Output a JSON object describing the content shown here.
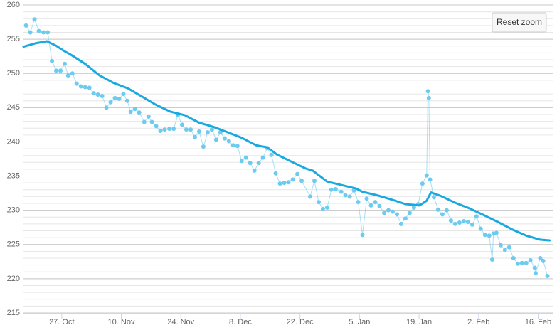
{
  "chart_data": {
    "type": "line",
    "reset_button": "Reset zoom",
    "xlim": [
      -9,
      115.6
    ],
    "ylim": [
      215,
      260
    ],
    "xticks": [
      {
        "value": 0,
        "label": "27. Oct"
      },
      {
        "value": 14,
        "label": "10. Nov"
      },
      {
        "value": 28,
        "label": "24. Nov"
      },
      {
        "value": 42,
        "label": "8. Dec"
      },
      {
        "value": 56,
        "label": "22. Dec"
      },
      {
        "value": 70,
        "label": "5. Jan"
      },
      {
        "value": 84,
        "label": "19. Jan"
      },
      {
        "value": 98,
        "label": "2. Feb"
      },
      {
        "value": 112,
        "label": "16. Feb"
      }
    ],
    "yticks": [
      215,
      220,
      225,
      230,
      235,
      240,
      245,
      250,
      255,
      260
    ],
    "grid": true,
    "minor_grid": true,
    "series": [
      {
        "color": "#6ccbee",
        "marker": true,
        "line_width": 1,
        "x": [
          -8.4,
          -7.4,
          -6.4,
          -5.4,
          -4.3,
          -3.3,
          -2.3,
          -1.3,
          -0.3,
          0.7,
          1.5,
          2.5,
          3.5,
          4.5,
          5.5,
          6.5,
          7.5,
          8.5,
          9.5,
          10.5,
          11.5,
          12.5,
          13.5,
          14.5,
          15.4,
          16.2,
          17.2,
          18.2,
          19.4,
          20.4,
          21.2,
          22.2,
          23.2,
          24.2,
          25.3,
          26.3,
          27.3,
          28.3,
          29.3,
          30.3,
          31.3,
          32.3,
          33.3,
          34.3,
          35.3,
          36.3,
          37.3,
          38.3,
          39.3,
          40.3,
          41.3,
          42.3,
          43.3,
          44.3,
          45.3,
          46.3,
          47.3,
          48.3,
          49.3,
          50.3,
          51.3,
          52.3,
          53.3,
          54.3,
          55.4,
          56.4,
          58.4,
          59.4,
          60.4,
          61.4,
          62.4,
          63.4,
          64.4,
          65.7,
          66.7,
          67.7,
          68.7,
          69.7,
          70.7,
          71.7,
          72.7,
          73.7,
          74.7,
          75.8,
          76.8,
          77.8,
          78.8,
          79.8,
          80.8,
          81.8,
          82.8,
          83.8,
          84.8,
          85.8,
          86.1,
          86.3,
          86.6,
          87.5,
          88.5,
          89.5,
          90.5,
          91.5,
          92.5,
          93.5,
          94.5,
          95.5,
          96.5,
          97.5,
          98.5,
          99.5,
          100.5,
          101.2,
          101.5,
          102.2,
          103.2,
          104.2,
          105.2,
          106.2,
          107.2,
          108.2,
          109.2,
          110.2,
          111.2,
          111.4,
          112.5,
          113.2,
          114.2
        ],
        "values": [
          257.0,
          256.0,
          257.9,
          256.2,
          256.0,
          256.0,
          251.8,
          250.4,
          250.4,
          251.4,
          249.7,
          250.0,
          248.5,
          248.1,
          248.0,
          247.9,
          247.1,
          246.9,
          246.7,
          245.0,
          245.8,
          246.4,
          246.3,
          247.0,
          246.0,
          244.4,
          244.8,
          244.3,
          242.9,
          243.7,
          242.9,
          242.3,
          241.6,
          241.8,
          241.9,
          241.9,
          243.9,
          242.5,
          241.8,
          241.8,
          240.7,
          241.5,
          239.3,
          241.4,
          241.8,
          240.3,
          241.4,
          240.5,
          240.1,
          239.5,
          239.4,
          237.2,
          237.7,
          236.9,
          235.8,
          236.9,
          237.7,
          239.1,
          238.1,
          235.4,
          233.9,
          234.0,
          234.1,
          234.5,
          235.3,
          234.3,
          232.0,
          234.3,
          231.2,
          230.2,
          230.4,
          233.0,
          233.1,
          232.7,
          232.2,
          232.0,
          232.9,
          231.2,
          226.4,
          231.7,
          230.7,
          231.2,
          230.6,
          229.6,
          230.0,
          229.8,
          229.4,
          228.0,
          228.8,
          229.6,
          230.4,
          230.9,
          233.9,
          235.1,
          247.4,
          246.4,
          234.5,
          231.9,
          230.1,
          229.4,
          230.0,
          228.5,
          228.0,
          228.2,
          228.4,
          228.3,
          227.9,
          229.1,
          227.3,
          226.4,
          226.3,
          222.8,
          226.6,
          226.7,
          224.9,
          224.2,
          224.6,
          223.0,
          222.2,
          222.3,
          222.3,
          222.7,
          221.6,
          220.8,
          223.0,
          222.6,
          220.4
        ]
      },
      {
        "color": "#19a9e1",
        "marker": false,
        "line_width": 3,
        "x": [
          -9.0,
          -6.2,
          -3.5,
          -1.2,
          0.5,
          2.2,
          5.5,
          8.9,
          12.2,
          15.6,
          18.9,
          22.2,
          25.6,
          28.9,
          32.3,
          35.6,
          39.0,
          42.3,
          45.7,
          48.3,
          50.7,
          54.0,
          57.4,
          59.0,
          62.4,
          65.7,
          69.1,
          70.7,
          74.1,
          77.4,
          80.8,
          84.1,
          85.8,
          86.8,
          89.1,
          92.5,
          95.8,
          99.2,
          102.5,
          105.9,
          109.2,
          112.5,
          114.7
        ],
        "values": [
          253.9,
          254.4,
          254.7,
          254.0,
          253.3,
          252.7,
          251.4,
          249.7,
          248.6,
          247.8,
          246.6,
          245.4,
          244.4,
          243.9,
          242.8,
          242.2,
          241.4,
          240.6,
          239.5,
          239.2,
          238.1,
          237.1,
          236.1,
          235.8,
          234.2,
          233.7,
          233.2,
          232.7,
          232.2,
          231.6,
          230.9,
          230.7,
          231.4,
          232.6,
          232.1,
          231.1,
          230.3,
          229.3,
          228.3,
          227.2,
          226.3,
          225.7,
          225.6
        ]
      }
    ]
  }
}
